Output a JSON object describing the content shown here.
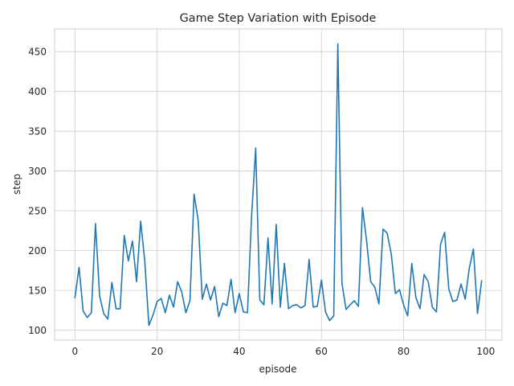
{
  "chart_data": {
    "type": "line",
    "title": "Game Step Variation with Episode",
    "xlabel": "episode",
    "ylabel": "step",
    "xlim": [
      -4.95,
      103.95
    ],
    "ylim": [
      87.5,
      478.5
    ],
    "xticks": [
      0,
      20,
      40,
      60,
      80,
      100
    ],
    "yticks": [
      100,
      150,
      200,
      250,
      300,
      350,
      400,
      450
    ],
    "grid": true,
    "style": "whitegrid",
    "series": [
      {
        "color": "#1f77b4",
        "x": [
          0,
          1,
          2,
          3,
          4,
          5,
          6,
          7,
          8,
          9,
          10,
          11,
          12,
          13,
          14,
          15,
          16,
          17,
          18,
          19,
          20,
          21,
          22,
          23,
          24,
          25,
          26,
          27,
          28,
          29,
          30,
          31,
          32,
          33,
          34,
          35,
          36,
          37,
          38,
          39,
          40,
          41,
          42,
          43,
          44,
          45,
          46,
          47,
          48,
          49,
          50,
          51,
          52,
          53,
          54,
          55,
          56,
          57,
          58,
          59,
          60,
          61,
          62,
          63,
          64,
          65,
          66,
          67,
          68,
          69,
          70,
          71,
          72,
          73,
          74,
          75,
          76,
          77,
          78,
          79,
          80,
          81,
          82,
          83,
          84,
          85,
          86,
          87,
          88,
          89,
          90,
          91,
          92,
          93,
          94,
          95,
          96,
          97,
          98,
          99
        ],
        "y": [
          141,
          179,
          124,
          116,
          122,
          234,
          143,
          121,
          114,
          160,
          127,
          127,
          219,
          187,
          212,
          161,
          237,
          187,
          106,
          119,
          136,
          140,
          122,
          144,
          129,
          161,
          148,
          122,
          137,
          271,
          238,
          139,
          158,
          138,
          155,
          117,
          134,
          131,
          164,
          122,
          146,
          123,
          122,
          243,
          329,
          138,
          132,
          216,
          133,
          233,
          129,
          184,
          127,
          131,
          132,
          128,
          131,
          189,
          129,
          130,
          163,
          123,
          112,
          118,
          460,
          159,
          126,
          132,
          137,
          130,
          254,
          212,
          161,
          154,
          133,
          227,
          222,
          196,
          146,
          151,
          132,
          118,
          184,
          141,
          127,
          170,
          161,
          129,
          123,
          208,
          223,
          152,
          136,
          138,
          158,
          139,
          178,
          202,
          121,
          162
        ]
      }
    ]
  }
}
